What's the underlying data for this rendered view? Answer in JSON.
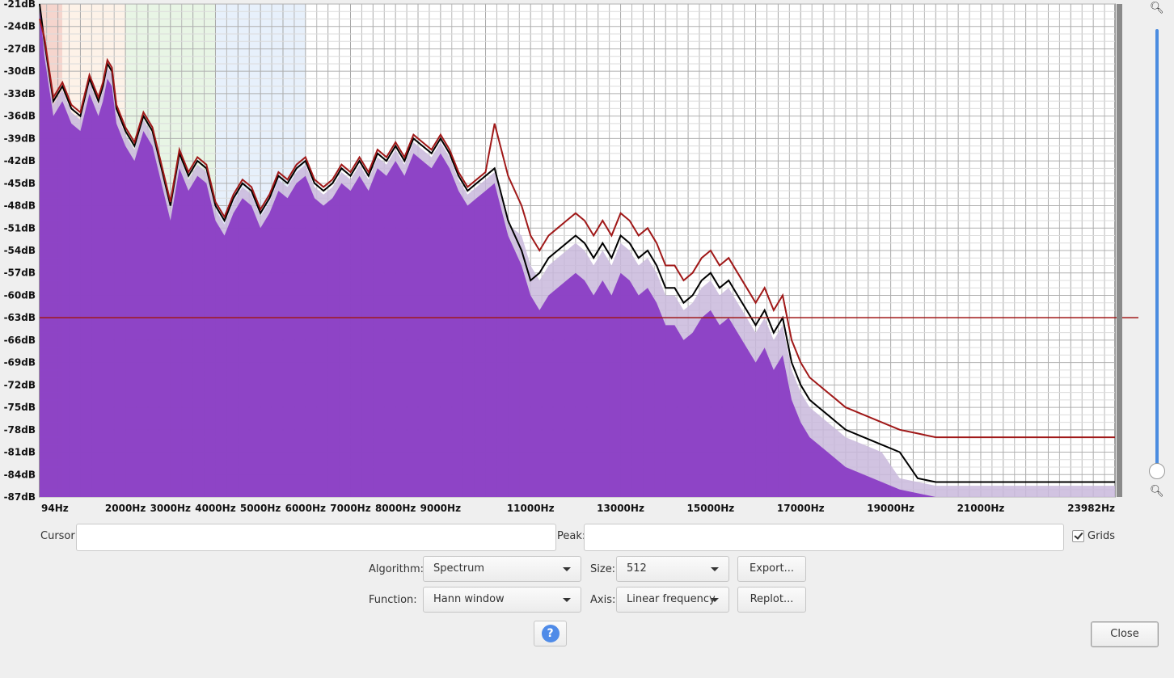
{
  "plot": {
    "y_labels": [
      "-21dB",
      "-24dB",
      "-27dB",
      "-30dB",
      "-33dB",
      "-36dB",
      "-39dB",
      "-42dB",
      "-45dB",
      "-48dB",
      "-51dB",
      "-54dB",
      "-57dB",
      "-60dB",
      "-63dB",
      "-66dB",
      "-69dB",
      "-72dB",
      "-75dB",
      "-78dB",
      "-81dB",
      "-84dB",
      "-87dB"
    ],
    "x_labels": [
      "94Hz",
      "2000Hz",
      "3000Hz",
      "4000Hz",
      "5000Hz",
      "6000Hz",
      "7000Hz",
      "8000Hz",
      "9000Hz",
      "11000Hz",
      "13000Hz",
      "15000Hz",
      "17000Hz",
      "19000Hz",
      "21000Hz",
      "23982Hz"
    ],
    "colors": {
      "fill": "#8a3dc4",
      "shadow": "#c9b8dc",
      "peak": "#000000",
      "avg": "#a01818"
    },
    "cursor_level_db": -63
  },
  "cursor": {
    "label": "Cursor:",
    "value": ""
  },
  "peak": {
    "label": "Peak:",
    "value": ""
  },
  "grids": {
    "label": "Grids",
    "checked": true
  },
  "algorithm": {
    "label": "Algorithm:",
    "value": "Spectrum"
  },
  "size": {
    "label": "Size:",
    "value": "512"
  },
  "function": {
    "label": "Function:",
    "value": "Hann window"
  },
  "axis": {
    "label": "Axis:",
    "value": "Linear frequency"
  },
  "buttons": {
    "export": "Export...",
    "replot": "Replot...",
    "help": "?",
    "close": "Close"
  },
  "icons": {
    "zoom_in": "zoom-in-icon",
    "zoom_out": "zoom-out-icon",
    "help": "help-icon"
  }
}
